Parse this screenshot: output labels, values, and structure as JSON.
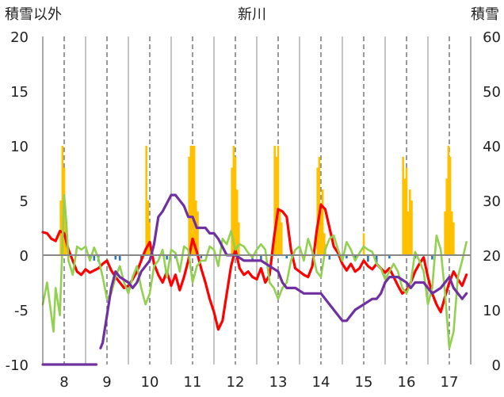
{
  "chart_data": {
    "type": "line",
    "title": "新川",
    "ylabel_left": "積雪以外",
    "ylabel_right": "積雪",
    "y_left_range": [
      -10,
      20
    ],
    "y_right_range": [
      0,
      60
    ],
    "y_left_ticks": [
      "20",
      "15",
      "10",
      "5",
      "0",
      "-5",
      "-10"
    ],
    "y_right_ticks": [
      "60",
      "50",
      "40",
      "30",
      "20",
      "10",
      "0"
    ],
    "x_ticks": [
      "8",
      "9",
      "10",
      "11",
      "12",
      "13",
      "14",
      "15",
      "16",
      "17"
    ],
    "x_range": [
      7.5,
      17.5
    ],
    "grid": "vertical lines: solid at day boundaries, dashed at day labels",
    "colors": {
      "precip_bar": "#FFC000",
      "negative_bar": "#2E75B6",
      "red_line": "#FF0000",
      "green_line": "#92D050",
      "purple_line": "#7030A0"
    },
    "series": [
      {
        "axis": "left",
        "style": "bar",
        "color": "#FFC000",
        "x": [
          7.92,
          7.96,
          8.0,
          8.04,
          9.92,
          9.96,
          9.99,
          10.92,
          10.96,
          11.0,
          11.04,
          11.08,
          11.12,
          11.92,
          11.96,
          12.0,
          12.04,
          12.08,
          12.92,
          12.96,
          13.0,
          13.04,
          13.08,
          13.92,
          13.96,
          14.0,
          14.04,
          14.08,
          14.1,
          15.0,
          15.92,
          15.96,
          16.0,
          16.04,
          16.08,
          16.12,
          16.9,
          16.94,
          16.98,
          17.02,
          17.06,
          17.1
        ],
        "values": [
          5,
          10,
          8,
          3,
          10,
          5,
          3,
          9,
          10,
          10,
          10,
          5,
          4,
          8,
          10,
          9,
          6,
          3,
          10,
          9,
          10,
          4,
          3,
          8,
          9,
          4,
          6,
          2,
          1,
          2,
          9,
          7,
          8,
          4,
          6,
          5,
          4,
          7,
          10,
          9,
          4,
          3
        ]
      },
      {
        "axis": "left",
        "style": "bar",
        "color": "#2E75B6",
        "x": [
          8.6,
          8.7,
          8.8,
          9.2,
          9.3,
          9.8,
          10.4,
          10.6,
          11.2,
          12.4,
          12.6,
          13.2,
          14.2,
          14.6,
          14.8,
          15.1,
          15.3,
          15.6,
          16.2,
          16.6
        ],
        "values": [
          -0.3,
          -0.5,
          -0.6,
          -0.4,
          -0.5,
          -0.5,
          -0.4,
          -0.3,
          -0.3,
          -0.5,
          -0.4,
          -0.3,
          -0.4,
          -0.3,
          -0.5,
          -0.6,
          -0.8,
          -0.3,
          -0.3,
          -0.4
        ]
      },
      {
        "axis": "left",
        "style": "line",
        "color": "#FF0000",
        "x": [
          7.5,
          7.6,
          7.7,
          7.8,
          7.9,
          8.0,
          8.1,
          8.2,
          8.3,
          8.4,
          8.5,
          8.6,
          8.7,
          8.8,
          8.9,
          9.0,
          9.1,
          9.2,
          9.3,
          9.4,
          9.5,
          9.6,
          9.7,
          9.8,
          9.9,
          10.0,
          10.1,
          10.2,
          10.3,
          10.4,
          10.5,
          10.6,
          10.7,
          10.8,
          10.9,
          11.0,
          11.1,
          11.2,
          11.3,
          11.4,
          11.5,
          11.6,
          11.7,
          11.8,
          11.9,
          12.0,
          12.1,
          12.2,
          12.3,
          12.4,
          12.5,
          12.6,
          12.7,
          12.8,
          12.9,
          13.0,
          13.1,
          13.2,
          13.3,
          13.4,
          13.5,
          13.6,
          13.7,
          13.8,
          13.9,
          14.0,
          14.1,
          14.2,
          14.3,
          14.4,
          14.5,
          14.6,
          14.7,
          14.8,
          14.9,
          15.0,
          15.1,
          15.2,
          15.3,
          15.4,
          15.5,
          15.6,
          15.7,
          15.8,
          15.9,
          16.0,
          16.1,
          16.2,
          16.3,
          16.4,
          16.5,
          16.6,
          16.7,
          16.8,
          16.9,
          17.0,
          17.1,
          17.2,
          17.3,
          17.4
        ],
        "values": [
          2.1,
          2.0,
          1.5,
          1.3,
          2.2,
          2.0,
          0.5,
          -0.5,
          -1.5,
          -1.8,
          -1.3,
          -1.6,
          -1.4,
          -1.2,
          -0.8,
          -0.5,
          -1.4,
          -2.0,
          -2.5,
          -3.0,
          -2.8,
          -2.2,
          -1.5,
          -0.5,
          0.5,
          1.2,
          -0.8,
          -1.8,
          -2.5,
          -1.5,
          -2.8,
          -1.8,
          -3.2,
          -2.0,
          -0.5,
          1.5,
          0.3,
          -1.2,
          -2.5,
          -4.0,
          -5.2,
          -6.8,
          -6.0,
          -3.5,
          -1.0,
          0.5,
          -1.2,
          -1.8,
          -1.5,
          -2.0,
          -2.2,
          -1.2,
          -2.5,
          -1.8,
          1.5,
          4.2,
          4.0,
          3.5,
          0.5,
          -1.2,
          -1.5,
          -1.8,
          -2.0,
          -1.0,
          2.2,
          4.6,
          4.2,
          2.5,
          0.8,
          0.2,
          -0.8,
          -1.4,
          -0.8,
          -1.5,
          -1.2,
          -0.5,
          -1.0,
          -1.3,
          -0.8,
          -1.2,
          -1.6,
          -1.2,
          -2.0,
          -2.8,
          -3.5,
          -3.2,
          -2.5,
          -1.5,
          -0.8,
          -0.2,
          -2.0,
          -3.5,
          -4.5,
          -5.2,
          -3.8,
          -2.5,
          -1.5,
          -2.2,
          -2.8,
          -1.8
        ]
      },
      {
        "axis": "left",
        "style": "line",
        "color": "#92D050",
        "x": [
          7.5,
          7.6,
          7.7,
          7.75,
          7.8,
          7.9,
          8.0,
          8.05,
          8.1,
          8.2,
          8.3,
          8.4,
          8.5,
          8.6,
          8.7,
          8.8,
          8.9,
          9.0,
          9.1,
          9.2,
          9.3,
          9.4,
          9.5,
          9.6,
          9.7,
          9.8,
          9.9,
          10.0,
          10.1,
          10.2,
          10.3,
          10.4,
          10.5,
          10.6,
          10.7,
          10.8,
          10.9,
          11.0,
          11.1,
          11.2,
          11.3,
          11.4,
          11.5,
          11.6,
          11.7,
          11.8,
          11.9,
          12.0,
          12.1,
          12.2,
          12.3,
          12.4,
          12.5,
          12.6,
          12.7,
          12.8,
          12.9,
          13.0,
          13.1,
          13.2,
          13.3,
          13.4,
          13.5,
          13.6,
          13.7,
          13.8,
          13.9,
          14.0,
          14.1,
          14.2,
          14.3,
          14.4,
          14.5,
          14.6,
          14.7,
          14.8,
          14.9,
          15.0,
          15.1,
          15.2,
          15.3,
          15.4,
          15.5,
          15.6,
          15.7,
          15.8,
          15.9,
          16.0,
          16.1,
          16.2,
          16.3,
          16.4,
          16.5,
          16.6,
          16.7,
          16.8,
          16.9,
          17.0,
          17.1,
          17.2,
          17.3,
          17.4
        ],
        "values": [
          -4.5,
          -2.5,
          -5.5,
          -7.0,
          -3.0,
          -5.5,
          5.5,
          3.0,
          -0.5,
          -1.8,
          0.8,
          0.5,
          0.8,
          -0.5,
          0.7,
          -0.3,
          -2.0,
          -4.0,
          -3.5,
          -2.0,
          -1.0,
          -2.5,
          -3.5,
          -2.0,
          -1.0,
          -3.0,
          -4.5,
          -3.5,
          -1.0,
          -0.5,
          0.5,
          -2.0,
          0.5,
          0.2,
          -1.5,
          0.8,
          0.5,
          -2.5,
          -1.0,
          -0.5,
          -0.5,
          0.8,
          0.5,
          -1.0,
          1.5,
          1.0,
          2.2,
          0.5,
          1.0,
          0.8,
          0.2,
          -0.2,
          0.5,
          1.0,
          0.5,
          -2.5,
          -3.0,
          -4.0,
          -3.0,
          -2.5,
          -0.5,
          0.5,
          0.8,
          -0.5,
          1.5,
          0.3,
          -1.5,
          -2.0,
          0.5,
          1.5,
          1.8,
          0.5,
          -0.5,
          1.2,
          0.5,
          -0.5,
          0.2,
          0.8,
          0.5,
          0.3,
          -0.8,
          -1.2,
          -2.2,
          -1.5,
          -0.8,
          -1.5,
          -3.0,
          -3.5,
          -2.5,
          0.3,
          -0.5,
          -1.5,
          -4.5,
          -3.0,
          1.8,
          0.5,
          -3.5,
          -8.5,
          -7.0,
          -2.0,
          -0.5,
          1.2
        ]
      },
      {
        "axis": "right",
        "style": "line",
        "color": "#7030A0",
        "x": [
          7.5,
          8.75,
          8.78,
          8.85,
          8.9,
          9.0,
          9.1,
          9.2,
          9.3,
          9.5,
          9.6,
          9.7,
          9.8,
          9.9,
          10.0,
          10.1,
          10.2,
          10.3,
          10.5,
          10.6,
          10.8,
          10.9,
          11.0,
          11.1,
          11.3,
          11.4,
          11.5,
          11.6,
          11.8,
          11.9,
          12.0,
          12.2,
          12.4,
          12.6,
          12.8,
          13.0,
          13.1,
          13.2,
          13.4,
          13.6,
          13.8,
          14.0,
          14.1,
          14.3,
          14.4,
          14.5,
          14.6,
          14.7,
          14.8,
          15.0,
          15.2,
          15.3,
          15.4,
          15.5,
          15.6,
          15.8,
          16.0,
          16.1,
          16.2,
          16.4,
          16.5,
          16.6,
          16.8,
          17.0,
          17.1,
          17.3,
          17.4
        ],
        "values": [
          0,
          0,
          null,
          3,
          4,
          9,
          14,
          17,
          16,
          15,
          14,
          15,
          17,
          18,
          19,
          22,
          27,
          28,
          31,
          31,
          29,
          27,
          27,
          25,
          25,
          24,
          24,
          23,
          20,
          20,
          20,
          19,
          19,
          19,
          18,
          17,
          15,
          14,
          14,
          13,
          13,
          13,
          12,
          10,
          9,
          8,
          8,
          9,
          10,
          11,
          12,
          12,
          13,
          15,
          16,
          16,
          15,
          14,
          15,
          15,
          14,
          13,
          14,
          16,
          14,
          12,
          13
        ]
      }
    ]
  }
}
